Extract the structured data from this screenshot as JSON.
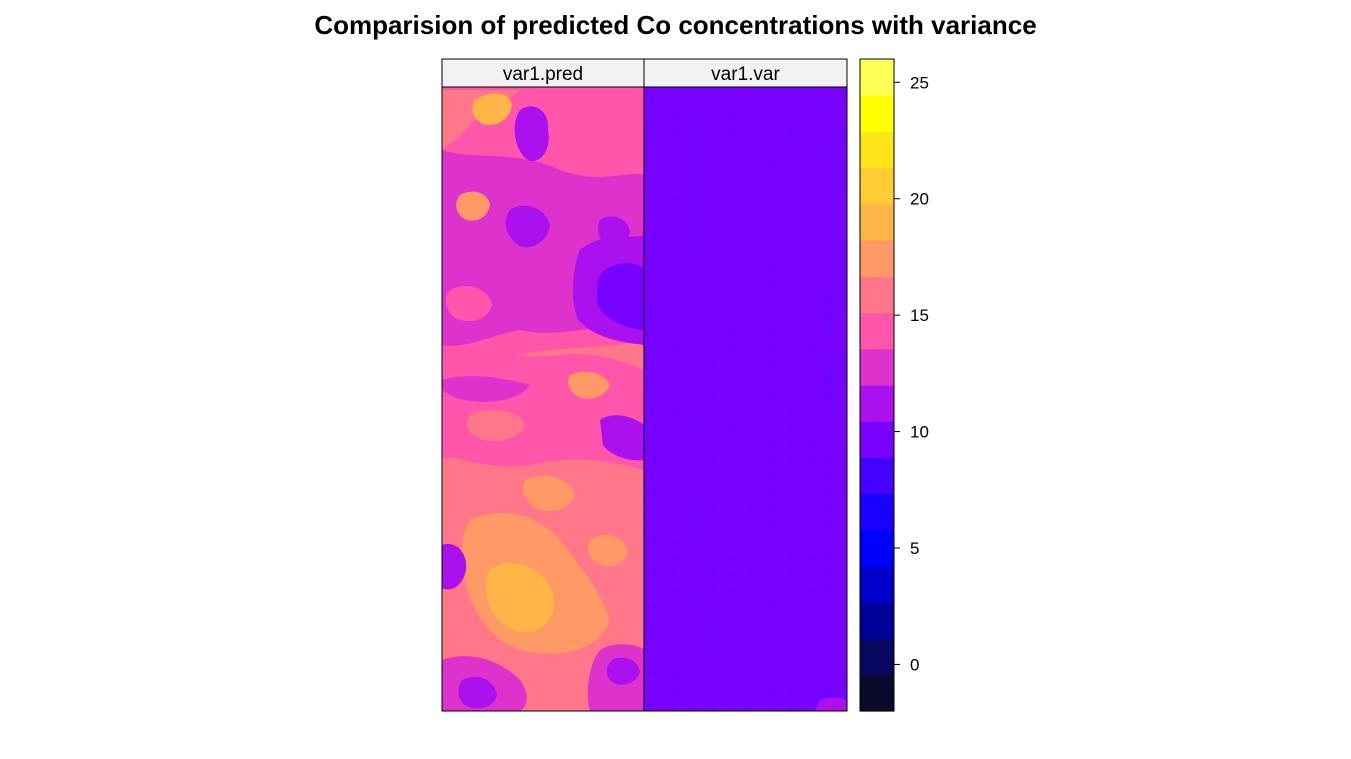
{
  "chart_data": {
    "type": "heatmap",
    "title": "Comparision of predicted Co concentrations with variance",
    "panels": [
      {
        "name": "var1.pred",
        "value_range": [
          11,
          21
        ],
        "dominant_levels": [
          13,
          15,
          16,
          17,
          18,
          20
        ]
      },
      {
        "name": "var1.var",
        "value_range": [
          8,
          11
        ],
        "dominant_levels": [
          10
        ]
      }
    ],
    "colorbar": {
      "ticks": [
        0,
        5,
        10,
        15,
        20,
        25
      ],
      "breaks": [
        -2,
        0,
        2,
        4,
        6,
        8,
        10,
        12,
        14,
        16,
        18,
        20,
        22,
        24,
        26
      ],
      "colors": [
        "#0a0a2a",
        "#07075f",
        "#000099",
        "#0000cc",
        "#0000ff",
        "#1a00ff",
        "#4400ff",
        "#7700ff",
        "#aa11ee",
        "#dd33cc",
        "#ff55aa",
        "#ff7788",
        "#ff9966",
        "#ffb548",
        "#ffcc33",
        "#ffe51a",
        "#ffff00",
        "#ffff55"
      ],
      "range": [
        -2,
        26
      ]
    }
  }
}
